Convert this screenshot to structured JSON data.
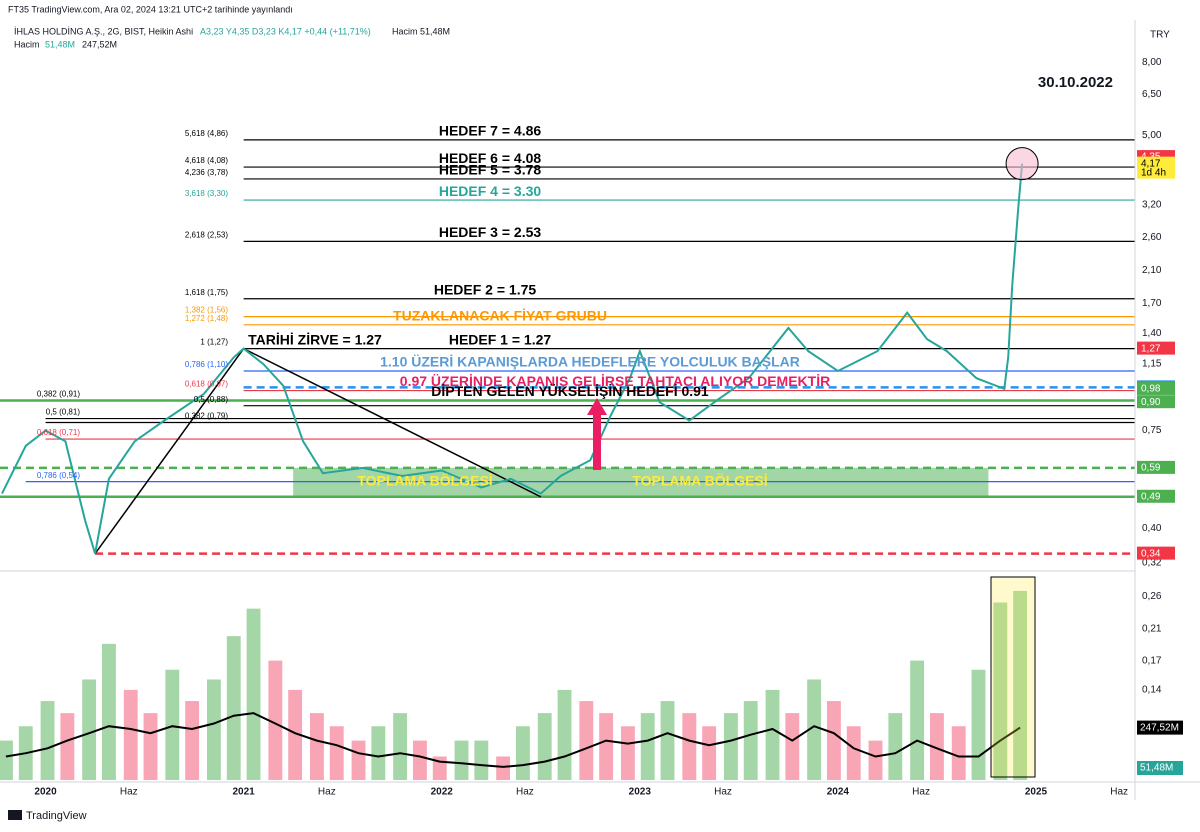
{
  "header": {
    "published": "FT35 TradingView.com, Ara 02, 2024 13:21 UTC+2 tarihinde yayınlandı",
    "symbol": "İHLAS HOLDİNG A.Ş., 2G, BIST, Heikin Ashi",
    "ohlc": "A3,23 Y4,35 D3,23 K4,17 +0,44 (+11,71%)",
    "volume_legend": "Hacim 51,48M",
    "volume_row_name": "Hacim",
    "volume_row_values": [
      "51,48M",
      "247,52M"
    ],
    "currency": "TRY",
    "date_note": "30.10.2022"
  },
  "footer": {
    "brand": "TradingView"
  },
  "chart_data": [
    {
      "type": "line",
      "log_scale": true,
      "color": "#26a69a",
      "x": [
        2019.78,
        2019.9,
        2020.0,
        2020.1,
        2020.2,
        2020.25,
        2020.32,
        2020.45,
        2020.6,
        2020.8,
        2020.95,
        2021.0,
        2021.1,
        2021.2,
        2021.3,
        2021.4,
        2021.6,
        2021.8,
        2022.0,
        2022.2,
        2022.35,
        2022.5,
        2022.6,
        2022.75,
        2022.85,
        2022.95,
        2023.0,
        2023.1,
        2023.25,
        2023.4,
        2023.55,
        2023.75,
        2023.85,
        2024.0,
        2024.2,
        2024.35,
        2024.45,
        2024.55,
        2024.7,
        2024.84,
        2024.86,
        2024.88,
        2024.91,
        2024.93
      ],
      "values": [
        0.5,
        0.68,
        0.75,
        0.7,
        0.42,
        0.34,
        0.55,
        0.7,
        0.8,
        0.95,
        1.2,
        1.27,
        1.15,
        1.0,
        0.7,
        0.57,
        0.59,
        0.56,
        0.58,
        0.52,
        0.55,
        0.5,
        0.56,
        0.62,
        0.82,
        1.05,
        1.25,
        0.9,
        0.8,
        0.92,
        1.05,
        1.45,
        1.25,
        1.1,
        1.25,
        1.6,
        1.35,
        1.25,
        1.05,
        0.98,
        1.2,
        1.9,
        3.1,
        4.17
      ],
      "xlim": [
        2019.77,
        2025.5
      ],
      "ylim": [
        0.31,
        10.5
      ],
      "xticks": [
        {
          "value": 2020,
          "label": "2020"
        },
        {
          "value": 2020.42,
          "label": "Haz"
        },
        {
          "value": 2021,
          "label": "2021"
        },
        {
          "value": 2021.42,
          "label": "Haz"
        },
        {
          "value": 2022,
          "label": "2022"
        },
        {
          "value": 2022.42,
          "label": "Haz"
        },
        {
          "value": 2023,
          "label": "2023"
        },
        {
          "value": 2023.42,
          "label": "Haz"
        },
        {
          "value": 2024,
          "label": "2024"
        },
        {
          "value": 2024.42,
          "label": "Haz"
        },
        {
          "value": 2025,
          "label": "2025"
        },
        {
          "value": 2025.42,
          "label": "Haz"
        }
      ],
      "yticks": [
        {
          "value": 8,
          "label": "8,00"
        },
        {
          "value": 6.5,
          "label": "6,50"
        },
        {
          "value": 5,
          "label": "5,00"
        },
        {
          "value": 3.2,
          "label": "3,20"
        },
        {
          "value": 2.6,
          "label": "2,60"
        },
        {
          "value": 2.1,
          "label": "2,10"
        },
        {
          "value": 1.7,
          "label": "1,70"
        },
        {
          "value": 1.4,
          "label": "1,40"
        },
        {
          "value": 1.15,
          "label": "1,15"
        },
        {
          "value": 0.75,
          "label": "0,75"
        },
        {
          "value": 0.4,
          "label": "0,40"
        },
        {
          "value": 0.32,
          "label": "0,32"
        }
      ],
      "price_tags": [
        {
          "value": 4.35,
          "label": "4,35",
          "color": "#f23645"
        },
        {
          "value": 4.17,
          "label": "4,17",
          "color": "#ffeb3b",
          "note": "1d 4h"
        },
        {
          "value": 1.27,
          "label": "1,27",
          "color": "#f23645"
        },
        {
          "value": 0.99,
          "label": "0,99",
          "color": "#2196f3"
        },
        {
          "value": 0.98,
          "label": "0,98",
          "color": "#4caf50"
        },
        {
          "value": 0.9,
          "label": "0,90",
          "color": "#4caf50"
        },
        {
          "value": 0.59,
          "label": "0,59",
          "color": "#4caf50"
        },
        {
          "value": 0.49,
          "label": "0,49",
          "color": "#4caf50"
        },
        {
          "value": 0.34,
          "label": "0,34",
          "color": "#f23645"
        }
      ],
      "levels": [
        {
          "value": 4.86,
          "from": 2021.0,
          "to": 2025.5,
          "color": "#000000"
        },
        {
          "value": 4.08,
          "from": 2021.0,
          "to": 2025.5,
          "color": "#000000"
        },
        {
          "value": 3.78,
          "from": 2021.0,
          "to": 2025.5,
          "color": "#000000"
        },
        {
          "value": 3.3,
          "from": 2021.0,
          "to": 2025.5,
          "color": "#26a69a"
        },
        {
          "value": 2.53,
          "from": 2021.0,
          "to": 2025.5,
          "color": "#000000"
        },
        {
          "value": 1.75,
          "from": 2021.0,
          "to": 2025.5,
          "color": "#000000"
        },
        {
          "value": 1.56,
          "from": 2021.0,
          "to": 2025.5,
          "color": "#ff9800"
        },
        {
          "value": 1.48,
          "from": 2021.0,
          "to": 2025.5,
          "color": "#ff9800"
        },
        {
          "value": 1.27,
          "from": 2021.0,
          "to": 2025.5,
          "color": "#000000"
        },
        {
          "value": 1.1,
          "from": 2021.0,
          "to": 2025.5,
          "color": "#2962ff"
        },
        {
          "value": 0.97,
          "from": 2021.0,
          "to": 2025.5,
          "color": "#f23645"
        },
        {
          "value": 0.99,
          "from": 2021.0,
          "to": 2025.5,
          "color": "#2196f3",
          "dashed": true
        },
        {
          "value": 0.91,
          "from": 2019.77,
          "to": 2025.5,
          "color": "#4caf50"
        },
        {
          "value": 0.88,
          "from": 2021.0,
          "to": 2025.5,
          "color": "#000000"
        },
        {
          "value": 0.81,
          "from": 2020.0,
          "to": 2025.5,
          "color": "#000000"
        },
        {
          "value": 0.79,
          "from": 2020.0,
          "to": 2025.5,
          "color": "#000000"
        },
        {
          "value": 0.71,
          "from": 2020.0,
          "to": 2025.5,
          "color": "#f23645"
        },
        {
          "value": 0.59,
          "from": 2019.77,
          "to": 2025.5,
          "color": "#4caf50",
          "dashed": true
        },
        {
          "value": 0.54,
          "from": 2019.9,
          "to": 2025.5,
          "color": "#2962ff"
        },
        {
          "value": 0.49,
          "from": 2019.77,
          "to": 2025.5,
          "color": "#4caf50"
        },
        {
          "value": 0.34,
          "from": 2020.25,
          "to": 2025.5,
          "color": "#f23645",
          "dashed": true
        }
      ],
      "trendlines": [
        {
          "x": [
            2020.25,
            2021.0
          ],
          "values": [
            0.34,
            1.27
          ]
        },
        {
          "x": [
            2021.0,
            2022.5
          ],
          "values": [
            1.27,
            0.49
          ]
        }
      ],
      "zone": {
        "x": [
          2021.25,
          2024.76
        ],
        "values": [
          0.49,
          0.59
        ],
        "color": "#66bb6a"
      },
      "fib_labels": [
        {
          "text": "5,618 (4,86)",
          "value": 4.86,
          "color": "#000000"
        },
        {
          "text": "4,618 (4,08)",
          "value": 4.08,
          "color": "#000000"
        },
        {
          "text": "4,236 (3,78)",
          "value": 3.78,
          "color": "#000000"
        },
        {
          "text": "3,618 (3,30)",
          "value": 3.3,
          "color": "#26a69a"
        },
        {
          "text": "2,618 (2,53)",
          "value": 2.53,
          "color": "#000000"
        },
        {
          "text": "1,618 (1,75)",
          "value": 1.75,
          "color": "#000000"
        },
        {
          "text": "1,382 (1,56)",
          "value": 1.56,
          "color": "#ff9800"
        },
        {
          "text": "1,272 (1,48)",
          "value": 1.48,
          "color": "#ff9800"
        },
        {
          "text": "1 (1,27)",
          "value": 1.27,
          "color": "#000000"
        },
        {
          "text": "0,786 (1,10)",
          "value": 1.1,
          "color": "#2962ff"
        },
        {
          "text": "0,618 (0,97)",
          "value": 0.97,
          "color": "#f23645"
        },
        {
          "text": "0,5 (0,88)",
          "value": 0.88,
          "color": "#000000"
        },
        {
          "text": "0,382 (0,79)",
          "value": 0.79,
          "color": "#000000"
        }
      ],
      "fib_labels_left": [
        {
          "text": "0,382 (0,91)",
          "value": 0.91,
          "color": "#000000"
        },
        {
          "text": "0,5 (0,81)",
          "value": 0.81,
          "color": "#000000"
        },
        {
          "text": "0,618 (0,71)",
          "value": 0.71,
          "color": "#f23645"
        },
        {
          "text": "0,786 (0,54)",
          "value": 0.54,
          "color": "#2962ff"
        }
      ],
      "annotations": [
        {
          "text": "HEDEF 7 = 4.86",
          "value": 4.86,
          "color": "#000000"
        },
        {
          "text": "HEDEF 6 = 4.08",
          "value": 4.08,
          "color": "#000000"
        },
        {
          "text": "HEDEF 5 = 3.78",
          "value": 3.78,
          "color": "#000000"
        },
        {
          "text": "HEDEF 4 = 3.30",
          "value": 3.3,
          "color": "#26a69a"
        },
        {
          "text": "HEDEF 3 = 2.53",
          "value": 2.53,
          "color": "#000000"
        },
        {
          "text": "HEDEF 2 = 1.75",
          "value": 1.75,
          "color": "#000000"
        },
        {
          "text": "TUZAKLANACAK FİYAT GRUBU",
          "value": 1.48,
          "color": "#ff9800"
        },
        {
          "text": "TARİHİ ZİRVE = 1.27",
          "value": 1.27,
          "color": "#000000"
        },
        {
          "text": "HEDEF 1 = 1.27",
          "value": 1.27,
          "color": "#000000"
        },
        {
          "text": "1.10 ÜZERİ KAPANIŞLARDA HEDEFLERE YOLCULUK BAŞLAR",
          "value": 1.1,
          "color": "#5b9bd5"
        },
        {
          "text": "0.97 ÜZERİNDE KAPANIŞ GELİRSE TAHTACI ALIYOR DEMEKTİR",
          "value": 0.97,
          "color": "#e91e63"
        },
        {
          "text": "DİPTEN GELEN YÜKSELİŞİN HEDEFİ 0.91",
          "value": 0.91,
          "color": "#000000"
        },
        {
          "text": "TOPLAMA BÖLGESİ",
          "value": 0.54,
          "color": "#ffeb3b"
        },
        {
          "text": "TOPLAMA BÖLGESİ",
          "value": 0.54,
          "color": "#ffeb3b"
        }
      ]
    },
    {
      "type": "bar",
      "log_scale": true,
      "up_color": "#a5d6a7",
      "down_color": "#f8a5b5",
      "ma_color": "#000000",
      "x": [
        2019.8,
        2019.9,
        2020.01,
        2020.11,
        2020.22,
        2020.32,
        2020.43,
        2020.53,
        2020.64,
        2020.74,
        2020.85,
        2020.95,
        2021.05,
        2021.16,
        2021.26,
        2021.37,
        2021.47,
        2021.58,
        2021.68,
        2021.79,
        2021.89,
        2021.99,
        2022.1,
        2022.2,
        2022.31,
        2022.41,
        2022.52,
        2022.62,
        2022.73,
        2022.83,
        2022.94,
        2023.04,
        2023.14,
        2023.25,
        2023.35,
        2023.46,
        2023.56,
        2023.67,
        2023.77,
        2023.88,
        2023.98,
        2024.08,
        2024.19,
        2024.29,
        2024.4,
        2024.5,
        2024.61,
        2024.71,
        2024.82,
        2024.92
      ],
      "values": [
        0.1,
        0.11,
        0.13,
        0.12,
        0.15,
        0.19,
        0.14,
        0.12,
        0.16,
        0.13,
        0.15,
        0.2,
        0.24,
        0.17,
        0.14,
        0.12,
        0.11,
        0.1,
        0.11,
        0.12,
        0.1,
        0.09,
        0.1,
        0.1,
        0.09,
        0.11,
        0.12,
        0.14,
        0.13,
        0.12,
        0.11,
        0.12,
        0.13,
        0.12,
        0.11,
        0.12,
        0.13,
        0.14,
        0.12,
        0.15,
        0.13,
        0.11,
        0.1,
        0.12,
        0.17,
        0.12,
        0.11,
        0.16,
        0.25,
        0.27
      ],
      "ma": [
        0.09,
        0.092,
        0.095,
        0.1,
        0.105,
        0.11,
        0.108,
        0.105,
        0.11,
        0.108,
        0.112,
        0.118,
        0.12,
        0.112,
        0.105,
        0.1,
        0.097,
        0.092,
        0.09,
        0.092,
        0.09,
        0.087,
        0.086,
        0.085,
        0.084,
        0.085,
        0.087,
        0.09,
        0.095,
        0.1,
        0.098,
        0.1,
        0.105,
        0.1,
        0.097,
        0.1,
        0.104,
        0.108,
        0.1,
        0.11,
        0.105,
        0.095,
        0.09,
        0.092,
        0.1,
        0.095,
        0.09,
        0.09,
        0.1,
        0.109
      ],
      "xlim": [
        2019.77,
        2025.5
      ],
      "ylim": [
        0.077,
        0.3
      ],
      "yticks": [
        {
          "value": 0.26,
          "label": "0,26"
        },
        {
          "value": 0.21,
          "label": "0,21"
        },
        {
          "value": 0.17,
          "label": "0,17"
        },
        {
          "value": 0.14,
          "label": "0,14"
        }
      ]
    }
  ]
}
